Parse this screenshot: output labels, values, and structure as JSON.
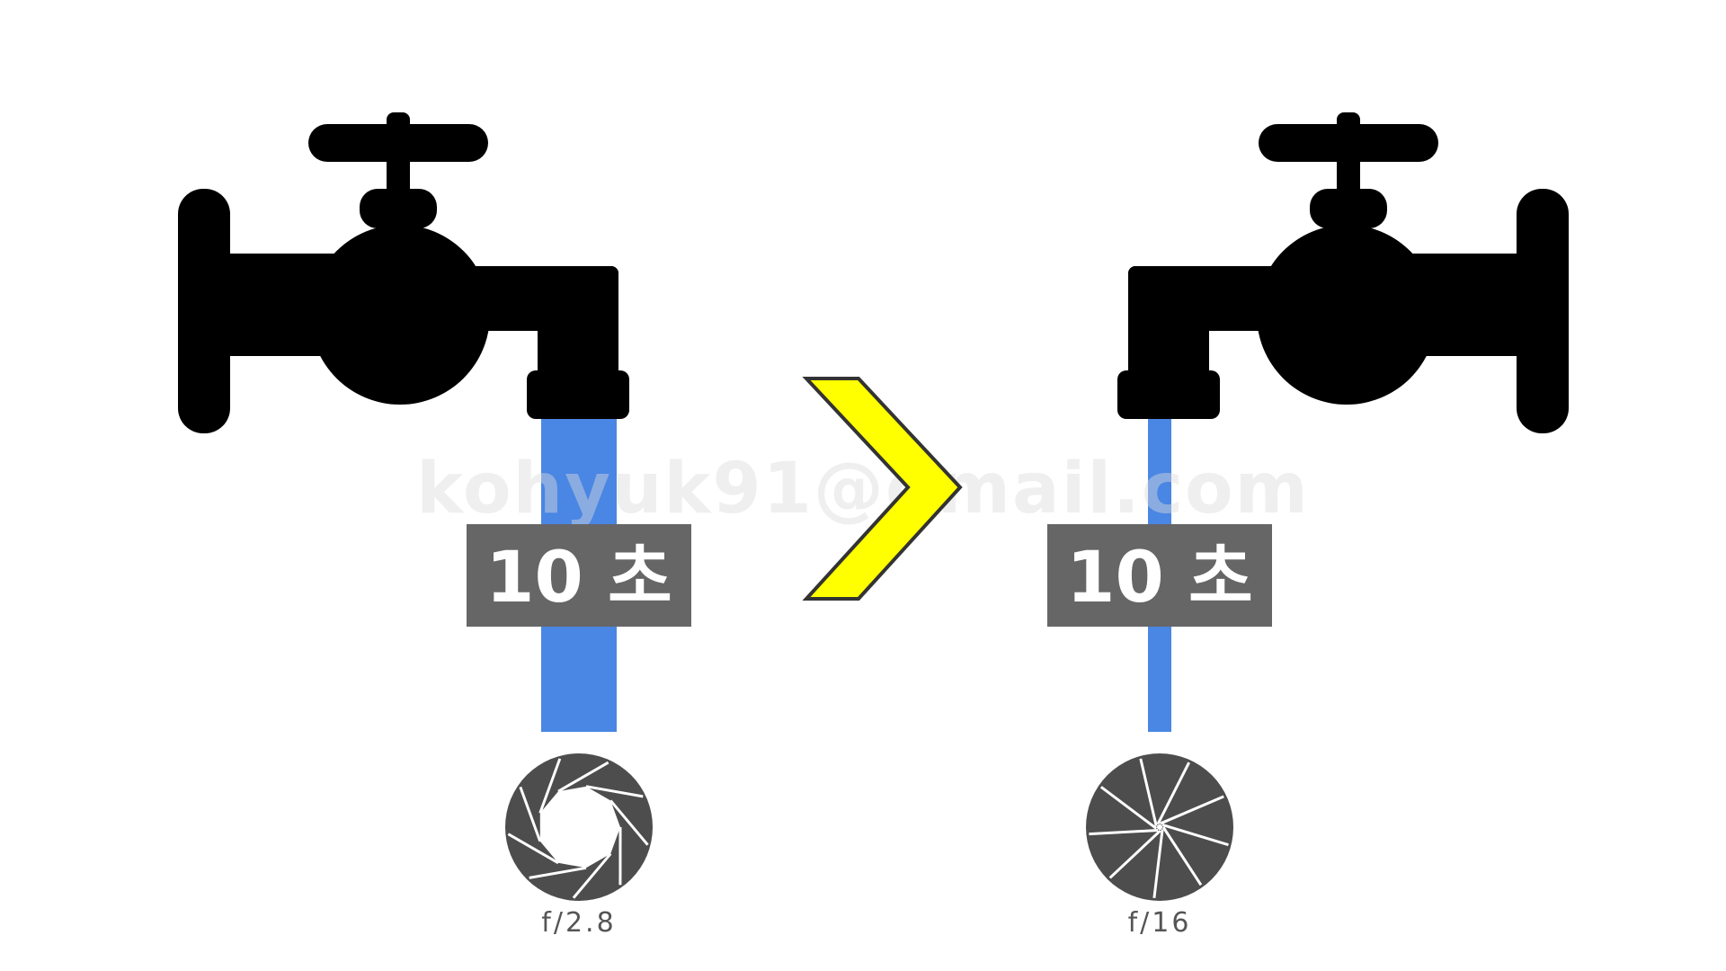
{
  "colors": {
    "faucet": "#000000",
    "water": "#4a86e4",
    "label_bg": "#666666",
    "label_text": "#ffffff",
    "arrow_fill": "#ffff00",
    "arrow_stroke": "#333333",
    "aperture": "#4d4d4d",
    "background": "#ffffff"
  },
  "left": {
    "time_label": "10 초",
    "aperture_label": "f/2.8",
    "aperture_state": "wide-open",
    "stream": "wide"
  },
  "comparison": {
    "symbol": ">",
    "icon": "greater-than-chevron-icon"
  },
  "right": {
    "time_label": "10 초",
    "aperture_label": "f/16",
    "aperture_state": "stopped-down",
    "stream": "narrow"
  },
  "watermark": "kohyuk91@gmail.com"
}
